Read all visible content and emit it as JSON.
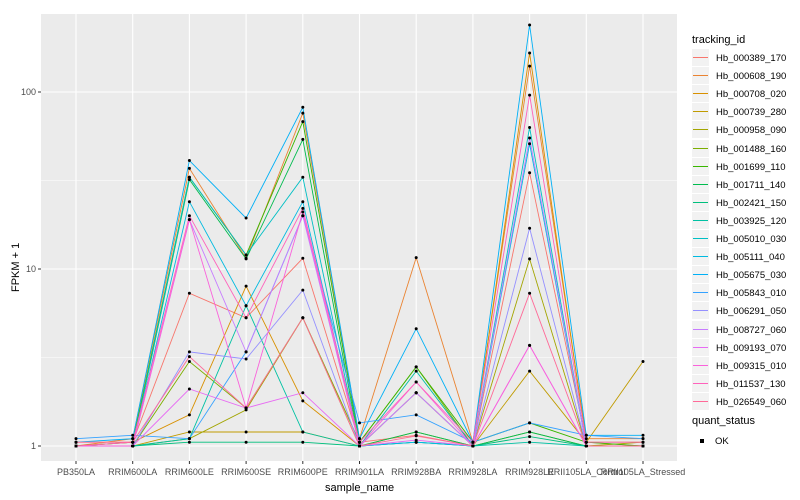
{
  "chart_data": {
    "type": "line",
    "title": "",
    "xlabel": "sample_name",
    "ylabel": "FPKM + 1",
    "y_scale": "log10",
    "y_ticks": [
      1,
      10,
      100
    ],
    "y_minor_ticks": [
      3.162,
      31.62
    ],
    "ylim": [
      1,
      280
    ],
    "grid": true,
    "panel_bg": "#ebebeb",
    "grid_color": "#ffffff",
    "point_color": "#000000",
    "legend_position": "right",
    "legend_title": "tracking_id",
    "categories": [
      "PB350LA",
      "RRIM600LA",
      "RRIM600LE",
      "RRIM600SE",
      "RRIM600PE",
      "RRIM901LA",
      "RRIM928BA",
      "RRIM928LA",
      "RRIM928LE",
      "RRII105LA_Control",
      "RRII105LA_Stressed"
    ],
    "series": [
      {
        "name": "Hb_000389_170",
        "color": "#F8766D",
        "values": [
          1.05,
          1.05,
          7.3,
          5.3,
          11.5,
          1.05,
          1.15,
          1.0,
          35,
          1.05,
          1.0
        ]
      },
      {
        "name": "Hb_000608_190",
        "color": "#EA8331",
        "values": [
          1.0,
          1.1,
          37,
          11.5,
          76,
          1.1,
          11.6,
          1.05,
          140,
          1.1,
          1.1
        ]
      },
      {
        "name": "Hb_000708_020",
        "color": "#D89000",
        "values": [
          1.0,
          1.05,
          1.5,
          8.0,
          1.8,
          1.0,
          2.0,
          1.0,
          166,
          1.05,
          1.05
        ]
      },
      {
        "name": "Hb_000739_280",
        "color": "#C09B00",
        "values": [
          1.0,
          1.0,
          1.2,
          1.2,
          1.2,
          1.0,
          2.0,
          1.0,
          2.65,
          1.05,
          3.0
        ]
      },
      {
        "name": "Hb_000958_090",
        "color": "#A3A500",
        "values": [
          1.0,
          1.0,
          1.1,
          1.6,
          5.3,
          1.0,
          1.2,
          1.0,
          11.4,
          1.0,
          1.05
        ]
      },
      {
        "name": "Hb_001488_160",
        "color": "#7CAE00",
        "values": [
          1.0,
          1.0,
          3.0,
          1.64,
          5.3,
          1.05,
          2.8,
          1.0,
          1.2,
          1.0,
          1.0
        ]
      },
      {
        "name": "Hb_001699_110",
        "color": "#39B600",
        "values": [
          1.0,
          1.05,
          33,
          12,
          68,
          1.05,
          2.8,
          1.05,
          1.35,
          1.05,
          1.0
        ]
      },
      {
        "name": "Hb_001711_140",
        "color": "#00BB4E",
        "values": [
          1.0,
          1.0,
          32,
          11.4,
          54,
          1.0,
          1.2,
          1.0,
          1.2,
          1.0,
          1.0
        ]
      },
      {
        "name": "Hb_002421_150",
        "color": "#00BF7D",
        "values": [
          1.0,
          1.0,
          1.05,
          1.05,
          1.05,
          1.0,
          1.05,
          1.0,
          1.13,
          1.0,
          1.0
        ]
      },
      {
        "name": "Hb_003925_120",
        "color": "#00C1A3",
        "values": [
          1.0,
          1.0,
          1.1,
          6.2,
          1.2,
          1.0,
          2.65,
          1.0,
          1.05,
          1.0,
          1.0
        ]
      },
      {
        "name": "Hb_005010_030",
        "color": "#00BFC4",
        "values": [
          1.0,
          1.0,
          33,
          12,
          33,
          1.0,
          1.05,
          1.0,
          63,
          1.0,
          1.0
        ]
      },
      {
        "name": "Hb_005111_040",
        "color": "#00BAE0",
        "values": [
          1.0,
          1.0,
          24,
          6.2,
          24,
          1.0,
          1.05,
          1.0,
          51,
          1.0,
          1.0
        ]
      },
      {
        "name": "Hb_005675_030",
        "color": "#00B0F6",
        "values": [
          1.05,
          1.1,
          41,
          19.4,
          82,
          1.1,
          4.6,
          1.05,
          239,
          1.15,
          1.15
        ]
      },
      {
        "name": "Hb_005843_010",
        "color": "#35A2FF",
        "values": [
          1.1,
          1.15,
          1.1,
          3.4,
          20,
          1.35,
          1.5,
          1.05,
          1.35,
          1.15,
          1.1
        ]
      },
      {
        "name": "Hb_006291_050",
        "color": "#9590FF",
        "values": [
          1.0,
          1.0,
          3.4,
          3.1,
          7.6,
          1.0,
          2.0,
          1.0,
          17,
          1.0,
          1.0
        ]
      },
      {
        "name": "Hb_008727_060",
        "color": "#C77CFF",
        "values": [
          1.0,
          1.0,
          19,
          3.4,
          20,
          1.0,
          2.0,
          1.0,
          55,
          1.0,
          1.0
        ]
      },
      {
        "name": "Hb_009193_070",
        "color": "#E76BF3",
        "values": [
          1.0,
          1.0,
          2.1,
          1.64,
          2.0,
          1.0,
          1.08,
          1.0,
          3.7,
          1.0,
          1.0
        ]
      },
      {
        "name": "Hb_009315_010",
        "color": "#FA62DB",
        "values": [
          1.0,
          1.0,
          19,
          1.64,
          21,
          1.0,
          2.3,
          1.0,
          3.7,
          1.0,
          1.0
        ]
      },
      {
        "name": "Hb_011537_130",
        "color": "#FF62BC",
        "values": [
          1.0,
          1.05,
          20,
          5.3,
          22,
          1.05,
          2.3,
          1.05,
          96,
          1.05,
          1.05
        ]
      },
      {
        "name": "Hb_026549_060",
        "color": "#FF6A98",
        "values": [
          1.05,
          1.05,
          3.2,
          1.64,
          5.3,
          1.0,
          1.14,
          1.0,
          7.3,
          1.0,
          1.0
        ]
      }
    ],
    "legend2": {
      "title": "quant_status",
      "items": [
        {
          "label": "OK",
          "marker": "point",
          "color": "#000000"
        }
      ]
    }
  }
}
